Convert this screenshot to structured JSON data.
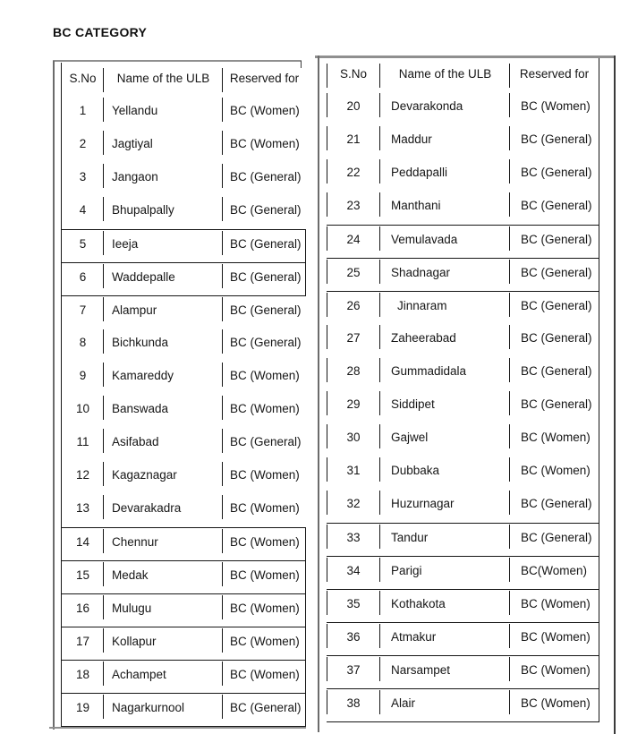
{
  "page": {
    "title": "BC CATEGORY"
  },
  "colors": {
    "text": "#161616",
    "table_border": "#161616",
    "frame_gray": "#8f8f8f"
  },
  "tables": [
    {
      "id": "left",
      "headers": [
        "S.No",
        "Name of the ULB",
        "Reserved for"
      ],
      "rows": [
        {
          "sno": "1",
          "ulb": "Yellandu",
          "reserved": "BC (Women)"
        },
        {
          "sno": "2",
          "ulb": "Jagtiyal",
          "reserved": "BC (Women)"
        },
        {
          "sno": "3",
          "ulb": "Jangaon",
          "reserved": "BC (General)"
        },
        {
          "sno": "4",
          "ulb": "Bhupalpally",
          "reserved": "BC (General)"
        },
        {
          "sno": "5",
          "ulb": "Ieeja",
          "reserved": "BC (General)"
        },
        {
          "sno": "6",
          "ulb": "Waddepalle",
          "reserved": "BC (General)"
        },
        {
          "sno": "7",
          "ulb": "Alampur",
          "reserved": "BC (General)"
        },
        {
          "sno": "8",
          "ulb": "Bichkunda",
          "reserved": "BC (General)"
        },
        {
          "sno": "9",
          "ulb": "Kamareddy",
          "reserved": "BC (Women)"
        },
        {
          "sno": "10",
          "ulb": "Banswada",
          "reserved": "BC (Women)"
        },
        {
          "sno": "11",
          "ulb": "Asifabad",
          "reserved": "BC (General)"
        },
        {
          "sno": "12",
          "ulb": "Kagaznagar",
          "reserved": "BC (Women)"
        },
        {
          "sno": "13",
          "ulb": "Devarakadra",
          "reserved": "BC (Women)"
        },
        {
          "sno": "14",
          "ulb": "Chennur",
          "reserved": "BC (Women)"
        },
        {
          "sno": "15",
          "ulb": "Medak",
          "reserved": "BC (Women)"
        },
        {
          "sno": "16",
          "ulb": "Mulugu",
          "reserved": "BC (Women)"
        },
        {
          "sno": "17",
          "ulb": "Kollapur",
          "reserved": "BC (Women)"
        },
        {
          "sno": "18",
          "ulb": "Achampet",
          "reserved": "BC (Women)"
        },
        {
          "sno": "19",
          "ulb": "Nagarkurnool",
          "reserved": "BC (General)"
        }
      ]
    },
    {
      "id": "right",
      "headers": [
        "S.No",
        "Name of the ULB",
        "Reserved for"
      ],
      "rows": [
        {
          "sno": "20",
          "ulb": "Devarakonda",
          "reserved": "BC (Women)"
        },
        {
          "sno": "21",
          "ulb": "Maddur",
          "reserved": "BC (General)"
        },
        {
          "sno": "22",
          "ulb": "Peddapalli",
          "reserved": "BC (General)"
        },
        {
          "sno": "23",
          "ulb": "Manthani",
          "reserved": "BC (General)"
        },
        {
          "sno": "24",
          "ulb": "Vemulavada",
          "reserved": "BC (General)"
        },
        {
          "sno": "25",
          "ulb": "Shadnagar",
          "reserved": "BC (General)"
        },
        {
          "sno": "26",
          "ulb": "Jinnaram",
          "reserved": "BC (General)"
        },
        {
          "sno": "27",
          "ulb": "Zaheerabad",
          "reserved": "BC (General)"
        },
        {
          "sno": "28",
          "ulb": "Gummadidala",
          "reserved": "BC (General)"
        },
        {
          "sno": "29",
          "ulb": "Siddipet",
          "reserved": "BC (General)"
        },
        {
          "sno": "30",
          "ulb": "Gajwel",
          "reserved": "BC (Women)"
        },
        {
          "sno": "31",
          "ulb": "Dubbaka",
          "reserved": "BC (Women)"
        },
        {
          "sno": "32",
          "ulb": "Huzurnagar",
          "reserved": "BC (General)"
        },
        {
          "sno": "33",
          "ulb": "Tandur",
          "reserved": "BC (General)"
        },
        {
          "sno": "34",
          "ulb": "Parigi",
          "reserved": "BC(Women)"
        },
        {
          "sno": "35",
          "ulb": "Kothakota",
          "reserved": "BC (Women)"
        },
        {
          "sno": "36",
          "ulb": "Atmakur",
          "reserved": "BC (Women)"
        },
        {
          "sno": "37",
          "ulb": "Narsampet",
          "reserved": "BC (Women)"
        },
        {
          "sno": "38",
          "ulb": "Alair",
          "reserved": "BC (Women)"
        }
      ]
    }
  ]
}
